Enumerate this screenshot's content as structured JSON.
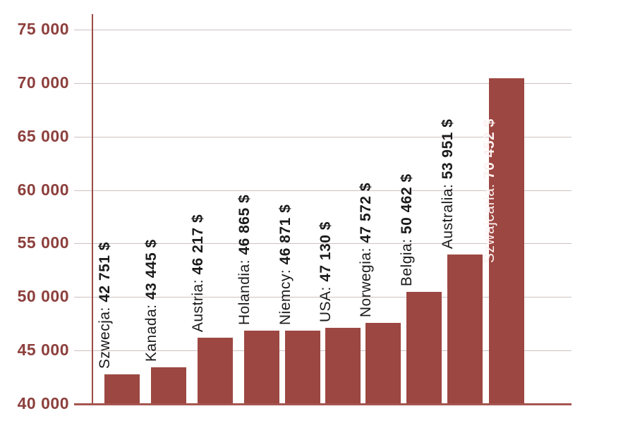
{
  "chart_data": {
    "type": "bar",
    "title": "",
    "xlabel": "",
    "ylabel": "",
    "ylim": [
      40000,
      75000
    ],
    "ytick_values": [
      40000,
      45000,
      50000,
      55000,
      60000,
      65000,
      70000,
      75000
    ],
    "ytick_labels": [
      "40 000",
      "45 000",
      "50 000",
      "55 000",
      "60 000",
      "65 000",
      "70 000",
      "75 000"
    ],
    "grid": true,
    "legend": false,
    "categories": [
      "Szwecja",
      "Kanada",
      "Austria",
      "Holandia",
      "Niemcy",
      "USA",
      "Norwegia",
      "Belgia",
      "Australia",
      "Szwajcaria"
    ],
    "values": [
      42751,
      43445,
      46217,
      46865,
      46871,
      47130,
      47572,
      50462,
      53951,
      70452
    ],
    "bars": [
      {
        "category": "Szwecja",
        "value": 42751,
        "name_part": "Szwecja: ",
        "value_part": "42 751 $",
        "label_inside": false
      },
      {
        "category": "Kanada",
        "value": 43445,
        "name_part": "Kanada: ",
        "value_part": "43 445 $",
        "label_inside": false
      },
      {
        "category": "Austria",
        "value": 46217,
        "name_part": "Austria: ",
        "value_part": "46 217 $",
        "label_inside": false
      },
      {
        "category": "Holandia",
        "value": 46865,
        "name_part": "Holandia: ",
        "value_part": "46 865 $",
        "label_inside": false
      },
      {
        "category": "Niemcy",
        "value": 46871,
        "name_part": "Niemcy: ",
        "value_part": "46 871 $",
        "label_inside": false
      },
      {
        "category": "USA",
        "value": 47130,
        "name_part": "USA: ",
        "value_part": "47 130 $",
        "label_inside": false
      },
      {
        "category": "Norwegia",
        "value": 47572,
        "name_part": "Norwegia: ",
        "value_part": "47 572 $",
        "label_inside": false
      },
      {
        "category": "Belgia",
        "value": 50462,
        "name_part": "Belgia: ",
        "value_part": "50 462 $",
        "label_inside": false
      },
      {
        "category": "Australia",
        "value": 53951,
        "name_part": "Australia: ",
        "value_part": "53 951 $",
        "label_inside": false
      },
      {
        "category": "Szwajcaria",
        "value": 70452,
        "name_part": "Szwajcaria: ",
        "value_part": "70 452 $",
        "label_inside": true
      }
    ],
    "colors": {
      "bar": "#9D4742",
      "baseline": "#A5554F",
      "axis_line": "#9B4B45",
      "gridline": "#CCC1BF",
      "ytick_text": "#8C3F3C",
      "bar_label_text": "#1A1A1A",
      "inside_label_text": "#FBF1F0",
      "background": "#FFFFFF"
    }
  }
}
